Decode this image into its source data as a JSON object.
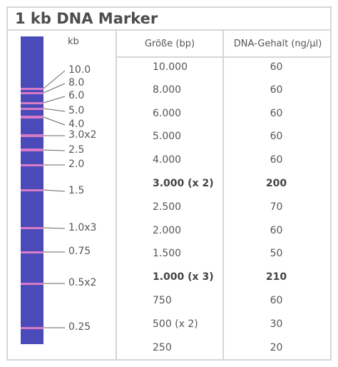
{
  "title": "1 kb DNA Marker",
  "gel": {
    "unit_label": "kb",
    "colors": {
      "lane": "#4a4bb8",
      "band": "#d77bc6",
      "border": "#d6d6d6"
    },
    "sizes": [
      "10.0",
      "8.0",
      "6.0",
      "5.0",
      "4.0",
      "3.0x2",
      "2.5",
      "2.0",
      "1.5",
      "1.0x3",
      "0.75",
      "0.5x2",
      "0.25"
    ]
  },
  "table": {
    "headers": {
      "size": "Größe (bp)",
      "dna": "DNA-Gehalt (ng/µl)"
    },
    "rows": [
      {
        "size": "10.000",
        "dna": "60",
        "bold": false
      },
      {
        "size": "8.000",
        "dna": "60",
        "bold": false
      },
      {
        "size": "6.000",
        "dna": "60",
        "bold": false
      },
      {
        "size": "5.000",
        "dna": "60",
        "bold": false
      },
      {
        "size": "4.000",
        "dna": "60",
        "bold": false
      },
      {
        "size": "3.000 (x 2)",
        "dna": "200",
        "bold": true
      },
      {
        "size": "2.500",
        "dna": "70",
        "bold": false
      },
      {
        "size": "2.000",
        "dna": "60",
        "bold": false
      },
      {
        "size": "1.500",
        "dna": "50",
        "bold": false
      },
      {
        "size": "1.000 (x 3)",
        "dna": "210",
        "bold": true
      },
      {
        "size": "750",
        "dna": "60",
        "bold": false
      },
      {
        "size": "500 (x 2)",
        "dna": "30",
        "bold": false
      },
      {
        "size": "250",
        "dna": "20",
        "bold": false
      }
    ]
  }
}
